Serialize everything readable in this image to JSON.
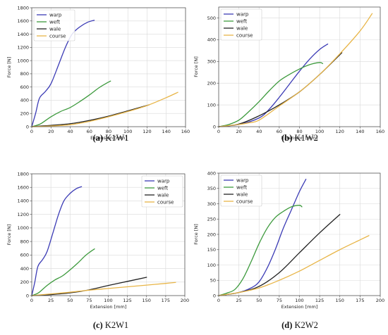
{
  "colors": {
    "warp": "#3b3bb5",
    "weft": "#3d9a3d",
    "wale": "#222222",
    "course": "#e8b547"
  },
  "chart_data": [
    {
      "id": "k1w1",
      "caption_letter": "(a)",
      "caption_name": "K1W1",
      "type": "line",
      "xlabel": "Extension [mm]",
      "ylabel": "Force [N]",
      "xlim": [
        0,
        160
      ],
      "ylim": [
        0,
        1800
      ],
      "xticks": [
        0,
        20,
        40,
        60,
        80,
        100,
        120,
        140,
        160
      ],
      "yticks": [
        0,
        200,
        400,
        600,
        800,
        1000,
        1200,
        1400,
        1600,
        1800
      ],
      "legend": "top-left",
      "grid": true,
      "series": [
        {
          "name": "warp",
          "x": [
            0,
            4,
            8,
            14,
            20,
            28,
            35,
            42,
            50,
            58,
            65
          ],
          "y": [
            0,
            200,
            430,
            530,
            650,
            940,
            1200,
            1400,
            1510,
            1580,
            1610
          ]
        },
        {
          "name": "weft",
          "x": [
            0,
            5,
            10,
            20,
            30,
            40,
            50,
            60,
            70,
            78,
            82
          ],
          "y": [
            0,
            20,
            50,
            150,
            230,
            290,
            380,
            480,
            590,
            660,
            690
          ]
        },
        {
          "name": "wale",
          "x": [
            0,
            10,
            20,
            40,
            60,
            80,
            100,
            122
          ],
          "y": [
            0,
            10,
            20,
            45,
            95,
            160,
            240,
            330
          ]
        },
        {
          "name": "course",
          "x": [
            0,
            20,
            40,
            60,
            80,
            100,
            120,
            140,
            152
          ],
          "y": [
            0,
            10,
            30,
            80,
            150,
            230,
            320,
            440,
            520
          ]
        }
      ]
    },
    {
      "id": "k1w2",
      "caption_letter": "(b)",
      "caption_name": "K1W2",
      "type": "line",
      "xlabel": "Extension [mm]",
      "ylabel": "Force [N]",
      "xlim": [
        0,
        160
      ],
      "ylim": [
        0,
        550
      ],
      "xticks": [
        0,
        20,
        40,
        60,
        80,
        100,
        120,
        140,
        160
      ],
      "yticks": [
        0,
        100,
        200,
        300,
        400,
        500
      ],
      "legend": "top-left",
      "grid": true,
      "series": [
        {
          "name": "warp",
          "x": [
            0,
            20,
            40,
            50,
            60,
            70,
            80,
            90,
            100,
            108
          ],
          "y": [
            0,
            10,
            40,
            80,
            135,
            195,
            255,
            310,
            355,
            380
          ]
        },
        {
          "name": "weft",
          "x": [
            0,
            10,
            20,
            30,
            40,
            50,
            60,
            70,
            80,
            90,
            100,
            103
          ],
          "y": [
            0,
            10,
            30,
            70,
            115,
            165,
            210,
            240,
            265,
            285,
            295,
            290
          ]
        },
        {
          "name": "wale",
          "x": [
            0,
            20,
            40,
            60,
            80,
            100,
            122
          ],
          "y": [
            0,
            12,
            50,
            100,
            160,
            240,
            340
          ]
        },
        {
          "name": "course",
          "x": [
            0,
            20,
            30,
            40,
            60,
            80,
            100,
            120,
            140,
            152
          ],
          "y": [
            0,
            10,
            18,
            30,
            95,
            160,
            240,
            335,
            440,
            520
          ]
        }
      ]
    },
    {
      "id": "k2w1",
      "caption_letter": "(c)",
      "caption_name": "K2W1",
      "type": "line",
      "xlabel": "Extension [mm]",
      "ylabel": "Force [N]",
      "xlim": [
        0,
        200
      ],
      "ylim": [
        0,
        1800
      ],
      "xticks": [
        0,
        25,
        50,
        75,
        100,
        125,
        150,
        175,
        200
      ],
      "yticks": [
        0,
        200,
        400,
        600,
        800,
        1000,
        1200,
        1400,
        1600,
        1800
      ],
      "legend": "top-right",
      "grid": true,
      "series": [
        {
          "name": "warp",
          "x": [
            0,
            4,
            8,
            14,
            20,
            28,
            35,
            42,
            50,
            58,
            65
          ],
          "y": [
            0,
            200,
            430,
            530,
            650,
            940,
            1200,
            1400,
            1510,
            1580,
            1610
          ]
        },
        {
          "name": "weft",
          "x": [
            0,
            5,
            10,
            20,
            30,
            40,
            50,
            60,
            70,
            78,
            82
          ],
          "y": [
            0,
            20,
            50,
            150,
            230,
            290,
            380,
            480,
            590,
            660,
            690
          ]
        },
        {
          "name": "wale",
          "x": [
            0,
            25,
            50,
            75,
            100,
            125,
            150
          ],
          "y": [
            0,
            15,
            40,
            85,
            150,
            210,
            270
          ]
        },
        {
          "name": "course",
          "x": [
            0,
            25,
            50,
            75,
            100,
            125,
            150,
            175,
            188
          ],
          "y": [
            0,
            25,
            50,
            80,
            105,
            130,
            155,
            180,
            195
          ]
        }
      ]
    },
    {
      "id": "k2w2",
      "caption_letter": "(d)",
      "caption_name": "K2W2",
      "type": "line",
      "xlabel": "Extension [mm]",
      "ylabel": "Force [N]",
      "xlim": [
        0,
        200
      ],
      "ylim": [
        0,
        400
      ],
      "xticks": [
        0,
        25,
        50,
        75,
        100,
        125,
        150,
        175,
        200
      ],
      "yticks": [
        0,
        50,
        100,
        150,
        200,
        250,
        300,
        350,
        400
      ],
      "legend": "top-left",
      "grid": true,
      "series": [
        {
          "name": "warp",
          "x": [
            0,
            25,
            40,
            50,
            60,
            70,
            80,
            90,
            100,
            108
          ],
          "y": [
            0,
            10,
            25,
            45,
            90,
            150,
            220,
            280,
            340,
            380
          ]
        },
        {
          "name": "weft",
          "x": [
            0,
            10,
            20,
            30,
            40,
            50,
            60,
            70,
            80,
            90,
            100,
            103
          ],
          "y": [
            0,
            8,
            20,
            55,
            110,
            170,
            220,
            255,
            275,
            290,
            295,
            290
          ]
        },
        {
          "name": "wale",
          "x": [
            0,
            25,
            50,
            75,
            100,
            125,
            150
          ],
          "y": [
            0,
            10,
            30,
            75,
            140,
            205,
            265
          ]
        },
        {
          "name": "course",
          "x": [
            0,
            25,
            50,
            75,
            100,
            125,
            150,
            175,
            186
          ],
          "y": [
            0,
            10,
            25,
            50,
            80,
            115,
            150,
            182,
            196
          ]
        }
      ]
    }
  ]
}
